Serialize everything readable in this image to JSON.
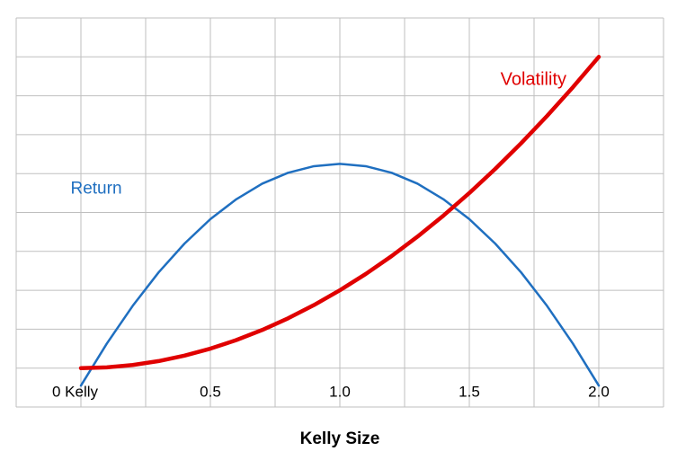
{
  "chart_data": {
    "type": "line",
    "xlabel": "Kelly Size",
    "x": [
      0,
      0.1,
      0.2,
      0.3,
      0.4,
      0.5,
      0.6,
      0.7,
      0.8,
      0.9,
      1.0,
      1.1,
      1.2,
      1.3,
      1.4,
      1.5,
      1.6,
      1.7,
      1.8,
      1.9,
      2.0
    ],
    "series": [
      {
        "name": "Return",
        "color": "#1f6fc0",
        "values": [
          -0.45,
          0.63,
          1.6,
          2.46,
          3.2,
          3.83,
          4.34,
          4.74,
          5.02,
          5.19,
          5.25,
          5.19,
          5.02,
          4.74,
          4.34,
          3.83,
          3.2,
          2.46,
          1.6,
          0.63,
          -0.45
        ]
      },
      {
        "name": "Volatility",
        "color": "#e00000",
        "values": [
          0,
          0.02,
          0.08,
          0.18,
          0.32,
          0.5,
          0.72,
          0.98,
          1.28,
          1.62,
          2,
          2.42,
          2.88,
          3.38,
          3.92,
          4.5,
          5.12,
          5.78,
          6.48,
          7.22,
          8
        ]
      }
    ],
    "xlim": [
      -0.25,
      2.25
    ],
    "ylim": [
      -1,
      9
    ],
    "xticks": [
      {
        "value": 0,
        "label": "0 Kelly"
      },
      0.5,
      {
        "value": 1,
        "label": "1.0"
      },
      1.5,
      {
        "value": 2,
        "label": "2.0"
      }
    ],
    "grid": {
      "x": [
        -0.25,
        0,
        0.25,
        0.5,
        0.75,
        1,
        1.25,
        1.5,
        1.75,
        2,
        2.25
      ],
      "y": [
        -1,
        0,
        1,
        2,
        3,
        4,
        5,
        6,
        7,
        8,
        9
      ]
    }
  }
}
